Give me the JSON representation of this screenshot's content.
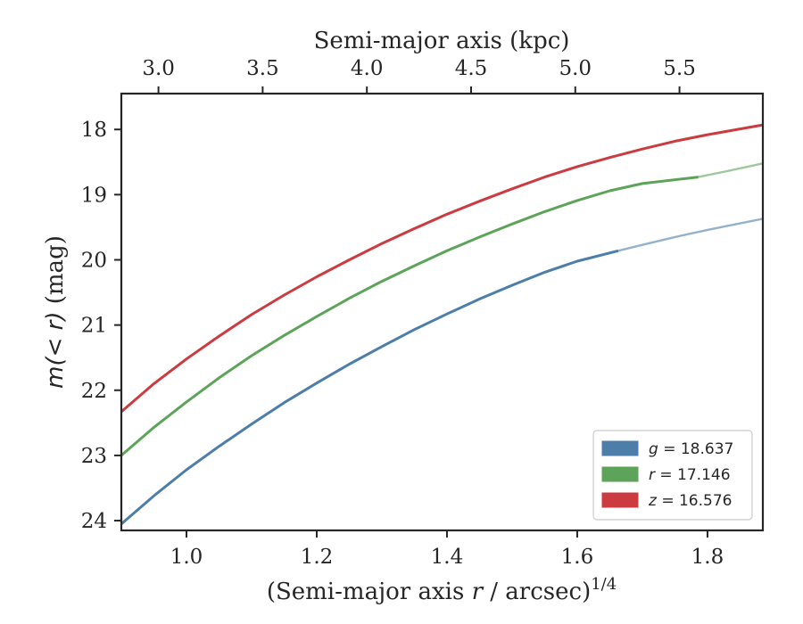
{
  "chart_data": {
    "type": "line",
    "xlabel": "(Semi-major axis r / arcsec)1/4",
    "xlabel_parts": {
      "prefix": "(Semi-major axis ",
      "var": "r",
      "mid": " / arcsec)",
      "sup": "1/4"
    },
    "ylabel": "m(<r) (mag)",
    "ylabel_parts": {
      "math": "m(< r)",
      "unit": " (mag)"
    },
    "top_xlabel": "Semi-major axis (kpc)",
    "xlim": [
      0.9,
      1.885
    ],
    "ylim": [
      24.15,
      17.45
    ],
    "y_inverted": true,
    "x_ticks": [
      "1.0",
      "1.2",
      "1.4",
      "1.6",
      "1.8"
    ],
    "x_tick_values": [
      1.0,
      1.2,
      1.4,
      1.6,
      1.8
    ],
    "y_ticks": [
      "18",
      "19",
      "20",
      "21",
      "22",
      "23",
      "24"
    ],
    "y_tick_values": [
      18,
      19,
      20,
      21,
      22,
      23,
      24
    ],
    "top_ticks": [
      "3.0",
      "3.5",
      "4.0",
      "4.5",
      "5.0",
      "5.5"
    ],
    "top_tick_values": [
      3.0,
      3.5,
      4.0,
      4.5,
      5.0,
      5.5
    ],
    "top_tick_bottom_x": [
      0.957,
      1.117,
      1.277,
      1.437,
      1.597,
      1.757
    ],
    "grid": false,
    "legend_position": "lower-right",
    "series": [
      {
        "name": "g = 18.637",
        "legend": {
          "var": "g",
          "eq": " = 18.637"
        },
        "color": "#4c7ea9",
        "x": [
          0.9,
          0.95,
          1.0,
          1.05,
          1.1,
          1.15,
          1.2,
          1.25,
          1.3,
          1.35,
          1.4,
          1.45,
          1.5,
          1.55,
          1.6,
          1.663
        ],
        "y": [
          24.05,
          23.62,
          23.22,
          22.86,
          22.52,
          22.19,
          21.89,
          21.6,
          21.33,
          21.07,
          20.83,
          20.6,
          20.39,
          20.19,
          20.02,
          19.86
        ],
        "extension": {
          "x": [
            1.663,
            1.7,
            1.75,
            1.8,
            1.885
          ],
          "y": [
            19.86,
            19.77,
            19.65,
            19.54,
            19.37
          ]
        }
      },
      {
        "name": "r = 17.146",
        "legend": {
          "var": "r",
          "eq": " = 17.146"
        },
        "color": "#5da35a",
        "x": [
          0.9,
          0.95,
          1.0,
          1.05,
          1.1,
          1.15,
          1.2,
          1.25,
          1.3,
          1.35,
          1.4,
          1.45,
          1.5,
          1.55,
          1.6,
          1.65,
          1.7,
          1.786
        ],
        "y": [
          23.0,
          22.57,
          22.18,
          21.81,
          21.47,
          21.16,
          20.87,
          20.59,
          20.33,
          20.09,
          19.86,
          19.65,
          19.45,
          19.26,
          19.09,
          18.94,
          18.83,
          18.73
        ],
        "extension": {
          "x": [
            1.786,
            1.83,
            1.885
          ],
          "y": [
            18.73,
            18.64,
            18.52
          ]
        }
      },
      {
        "name": "z = 16.576",
        "legend": {
          "var": "z",
          "eq": " = 16.576"
        },
        "color": "#cc3b3f",
        "x": [
          0.9,
          0.95,
          1.0,
          1.05,
          1.1,
          1.15,
          1.2,
          1.25,
          1.3,
          1.35,
          1.4,
          1.45,
          1.5,
          1.55,
          1.6,
          1.65,
          1.7,
          1.75,
          1.8,
          1.885
        ],
        "y": [
          22.33,
          21.9,
          21.52,
          21.17,
          20.84,
          20.54,
          20.26,
          20.0,
          19.75,
          19.52,
          19.3,
          19.1,
          18.91,
          18.73,
          18.57,
          18.43,
          18.3,
          18.18,
          18.08,
          17.93
        ]
      }
    ]
  }
}
